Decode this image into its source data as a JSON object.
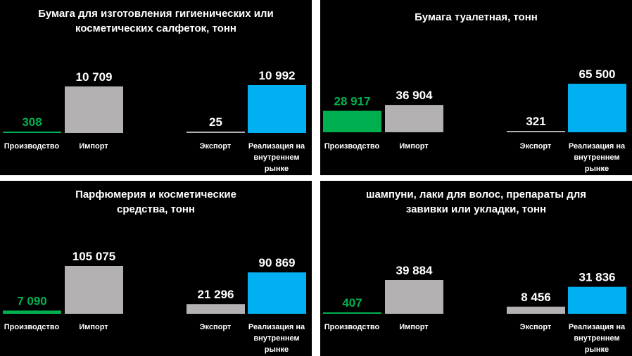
{
  "chart_data": [
    {
      "type": "bar",
      "title": "Бумага для изготовления гигиенических или косметических салфеток, тонн",
      "categories": [
        "Производство",
        "Импорт",
        "Экспорт",
        "Реализация на внутреннем рынке"
      ],
      "values": [
        308,
        10709,
        25,
        10992
      ],
      "value_labels": [
        "308",
        "10 709",
        "25",
        "10 992"
      ],
      "colors": [
        "#00b050",
        "#b3b1b1",
        "#b3b1b1",
        "#00b0f0"
      ],
      "label_colors": [
        "#00b050",
        "#ffffff",
        "#ffffff",
        "#ffffff"
      ],
      "xlabel": "",
      "ylabel": ""
    },
    {
      "type": "bar",
      "title": "Бумага туалетная, тонн",
      "categories": [
        "Производство",
        "Импорт",
        "Экспорт",
        "Реализация на внутреннем рынке"
      ],
      "values": [
        28917,
        36904,
        321,
        65500
      ],
      "value_labels": [
        "28 917",
        "36 904",
        "321",
        "65 500"
      ],
      "colors": [
        "#00b050",
        "#b3b1b1",
        "#b3b1b1",
        "#00b0f0"
      ],
      "label_colors": [
        "#00b050",
        "#ffffff",
        "#ffffff",
        "#ffffff"
      ],
      "xlabel": "",
      "ylabel": ""
    },
    {
      "type": "bar",
      "title": "Парфюмерия и косметические средства, тонн",
      "categories": [
        "Производство",
        "Импорт",
        "Экспорт",
        "Реализация на внутреннем рынке"
      ],
      "values": [
        7090,
        105075,
        21296,
        90869
      ],
      "value_labels": [
        "7 090",
        "105 075",
        "21 296",
        "90 869"
      ],
      "colors": [
        "#00b050",
        "#b3b1b1",
        "#b3b1b1",
        "#00b0f0"
      ],
      "label_colors": [
        "#00b050",
        "#ffffff",
        "#ffffff",
        "#ffffff"
      ],
      "xlabel": "",
      "ylabel": ""
    },
    {
      "type": "bar",
      "title": "шампуни, лаки для волос, препараты для завивки или укладки, тонн",
      "categories": [
        "Производство",
        "Импорт",
        "Экспорт",
        "Реализация на внутреннем рынке"
      ],
      "values": [
        407,
        39884,
        8456,
        31836
      ],
      "value_labels": [
        "407",
        "39 884",
        "8 456",
        "31 836"
      ],
      "colors": [
        "#00b050",
        "#b3b1b1",
        "#b3b1b1",
        "#00b0f0"
      ],
      "label_colors": [
        "#00b050",
        "#ffffff",
        "#ffffff",
        "#ffffff"
      ],
      "xlabel": "",
      "ylabel": ""
    }
  ]
}
